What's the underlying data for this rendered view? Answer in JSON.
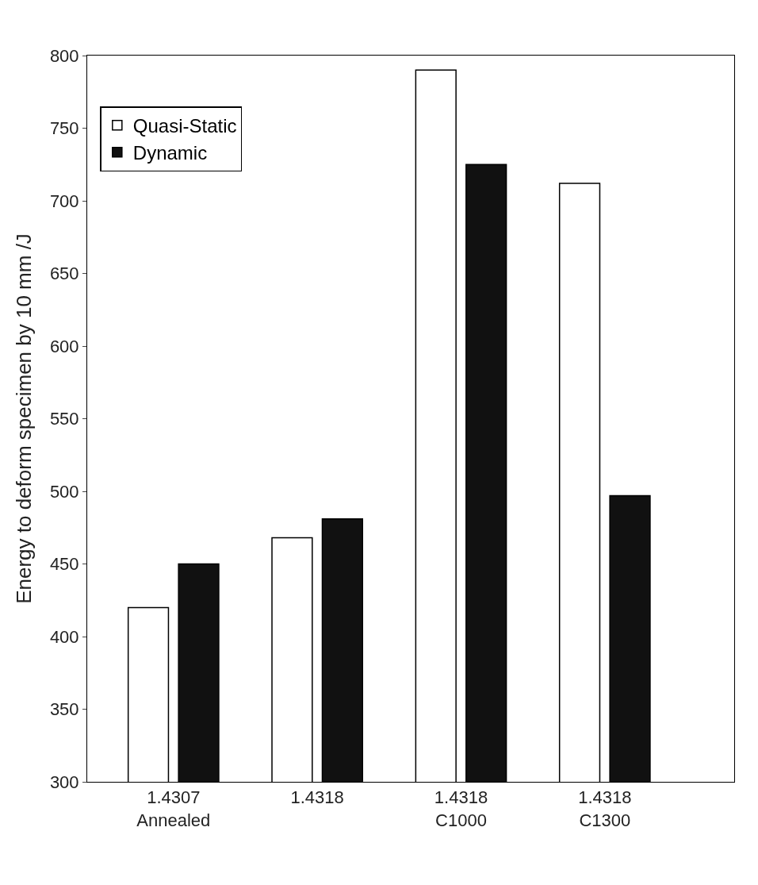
{
  "chart_data": {
    "type": "bar",
    "ylabel": "Energy to deform specimen by 10 mm /J",
    "categories": [
      "1.4307\nAnnealed",
      "1.4318",
      "1.4318\nC1000",
      "1.4318\nC1300"
    ],
    "series": [
      {
        "name": "Quasi-Static",
        "color": "#ffffff",
        "values": [
          420,
          468,
          790,
          712
        ]
      },
      {
        "name": "Dynamic",
        "color": "#111111",
        "values": [
          450,
          481,
          725,
          497
        ]
      }
    ],
    "ylim": [
      300,
      800
    ],
    "yticks": [
      300,
      350,
      400,
      450,
      500,
      550,
      600,
      650,
      700,
      750,
      800
    ],
    "legend": "top left"
  }
}
